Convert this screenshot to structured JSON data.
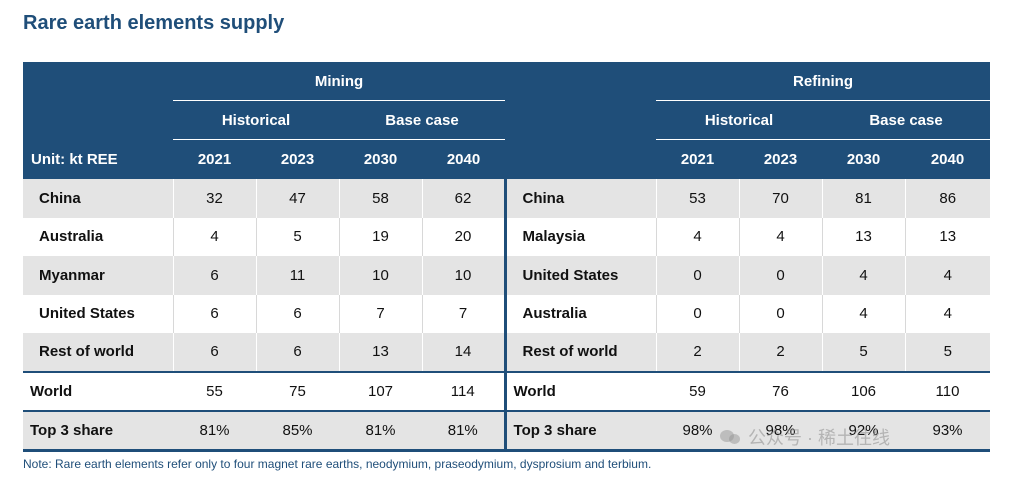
{
  "title": "Rare earth elements supply",
  "header": {
    "mining": "Mining",
    "refining": "Refining",
    "historical": "Historical",
    "base_case": "Base case",
    "unit": "Unit: kt REE",
    "years": [
      "2021",
      "2023",
      "2030",
      "2040"
    ]
  },
  "mining_rows": [
    {
      "country": "China",
      "values": [
        "32",
        "47",
        "58",
        "62"
      ]
    },
    {
      "country": "Australia",
      "values": [
        "4",
        "5",
        "19",
        "20"
      ]
    },
    {
      "country": "Myanmar",
      "values": [
        "6",
        "11",
        "10",
        "10"
      ]
    },
    {
      "country": "United States",
      "values": [
        "6",
        "6",
        "7",
        "7"
      ]
    },
    {
      "country": "Rest of world",
      "values": [
        "6",
        "6",
        "13",
        "14"
      ]
    }
  ],
  "refining_rows": [
    {
      "country": "China",
      "values": [
        "53",
        "70",
        "81",
        "86"
      ]
    },
    {
      "country": "Malaysia",
      "values": [
        "4",
        "4",
        "13",
        "13"
      ]
    },
    {
      "country": "United States",
      "values": [
        "0",
        "0",
        "4",
        "4"
      ]
    },
    {
      "country": "Australia",
      "values": [
        "0",
        "0",
        "4",
        "4"
      ]
    },
    {
      "country": "Rest of world",
      "values": [
        "2",
        "2",
        "5",
        "5"
      ]
    }
  ],
  "world": {
    "label": "World",
    "mining": [
      "55",
      "75",
      "107",
      "114"
    ],
    "refining": [
      "59",
      "76",
      "106",
      "110"
    ]
  },
  "top3": {
    "label": "Top 3 share",
    "mining": [
      "81%",
      "85%",
      "81%",
      "81%"
    ],
    "refining": [
      "98%",
      "98%",
      "92%",
      "93%"
    ]
  },
  "note": "Note: Rare earth elements refer only to four magnet rare earths, neodymium, praseodymium, dysprosium and terbium.",
  "watermark": "公众号 · 稀土往线"
}
